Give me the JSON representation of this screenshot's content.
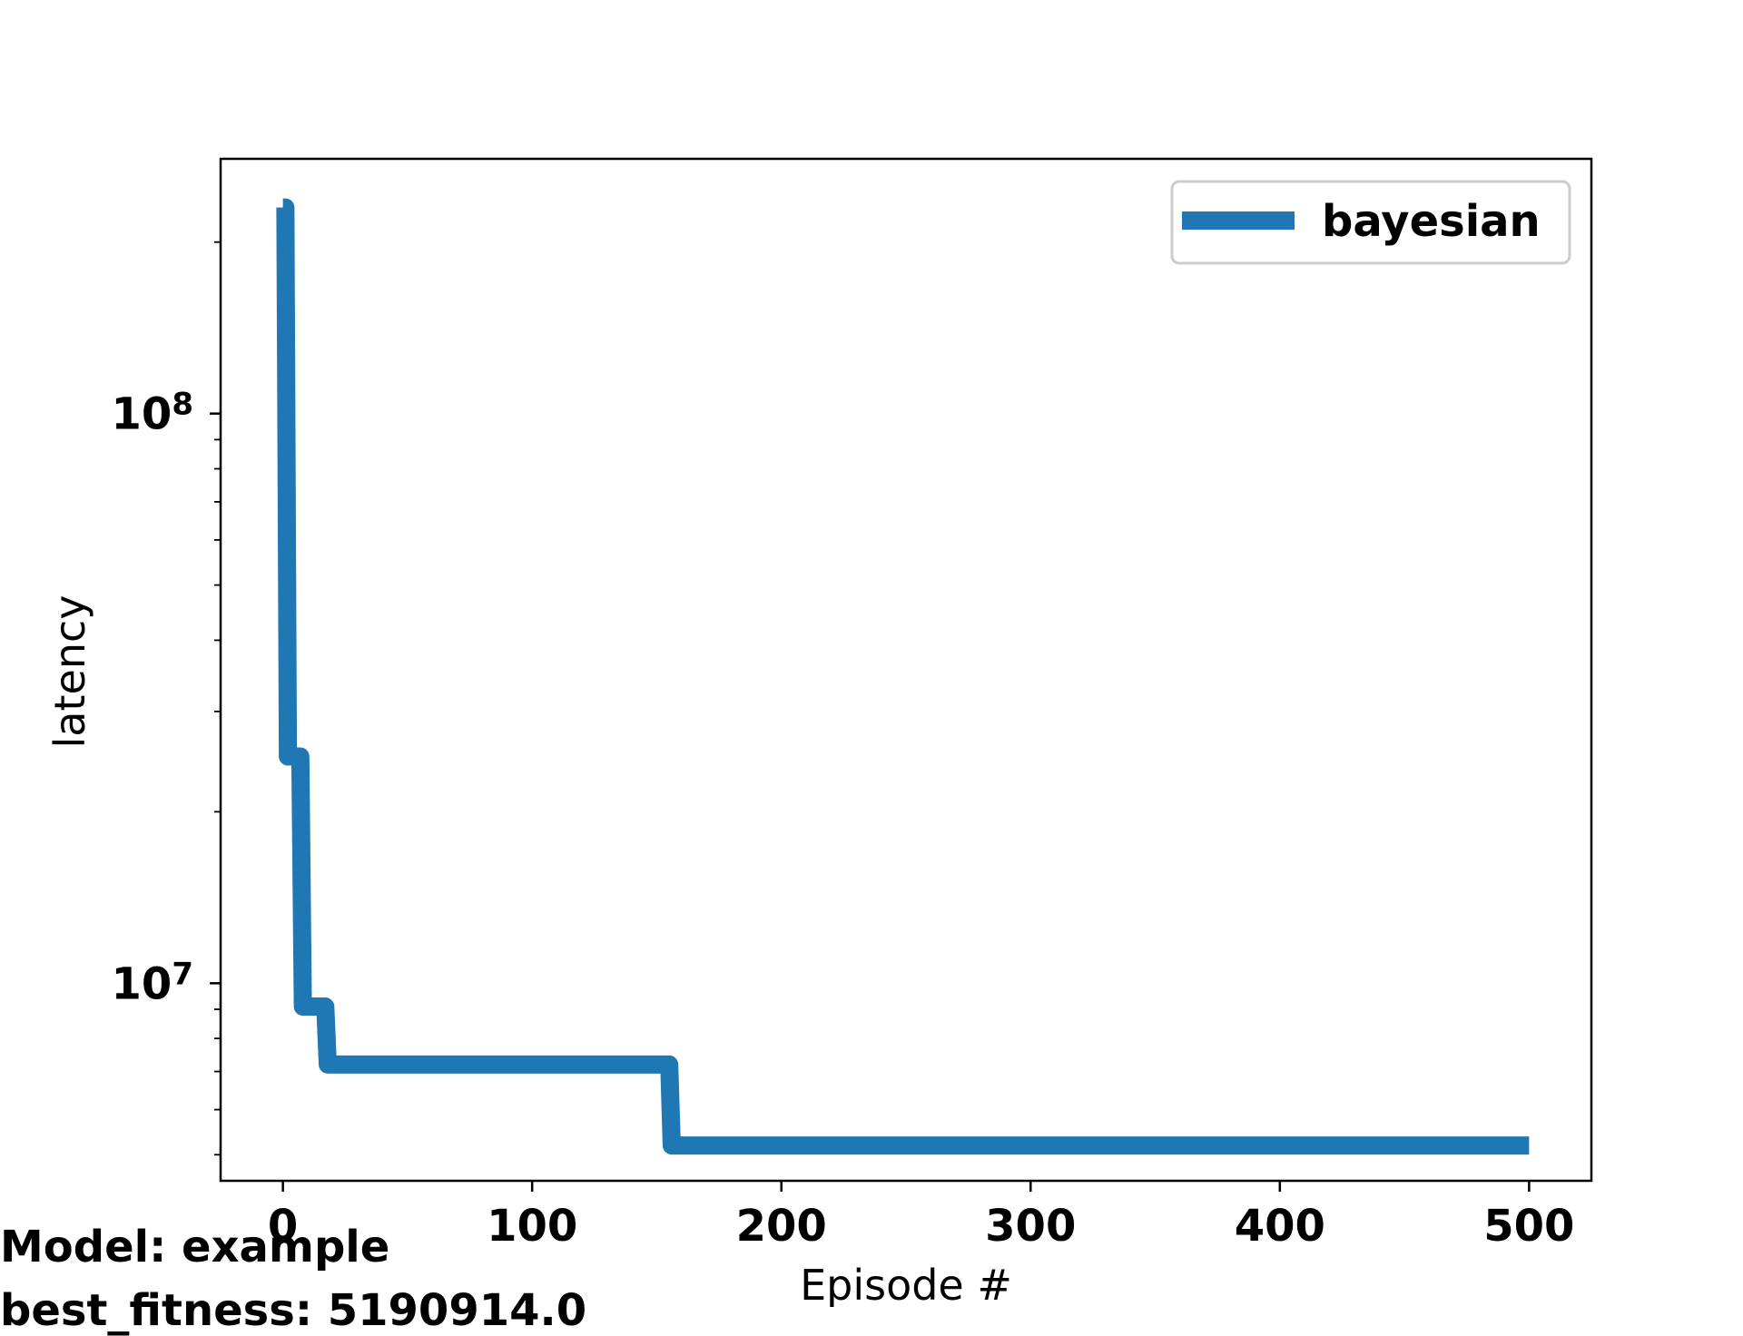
{
  "chart_data": {
    "type": "line",
    "title": "",
    "xlabel": "Episode #",
    "ylabel": "latency",
    "xlim": [
      -25,
      525
    ],
    "ylim": [
      4500000,
      280000000
    ],
    "yscale": "log",
    "x_ticks": [
      0,
      100,
      200,
      300,
      400,
      500
    ],
    "x_tick_labels": [
      "0",
      "100",
      "200",
      "300",
      "400",
      "500"
    ],
    "y_major_ticks": [
      10000000,
      100000000
    ],
    "y_tick_labels": [
      {
        "base": "10",
        "exp": "7"
      },
      {
        "base": "10",
        "exp": "8"
      }
    ],
    "y_minor_ticks": [
      5000000,
      6000000,
      7000000,
      8000000,
      9000000,
      20000000,
      30000000,
      40000000,
      50000000,
      60000000,
      70000000,
      80000000,
      90000000,
      200000000
    ],
    "grid": false,
    "legend_position": "top-right",
    "series": [
      {
        "name": "bayesian",
        "color": "#1f77b4",
        "points": [
          [
            0,
            230000000
          ],
          [
            1,
            230000000
          ],
          [
            2,
            25000000
          ],
          [
            7,
            25000000
          ],
          [
            8,
            9100000
          ],
          [
            17,
            9100000
          ],
          [
            18,
            7200000
          ],
          [
            155,
            7200000
          ],
          [
            156,
            5190914
          ],
          [
            500,
            5190914
          ]
        ]
      }
    ]
  },
  "footer": {
    "model_line": "Model: example",
    "fitness_line": "best_fitness: 5190914.0"
  }
}
